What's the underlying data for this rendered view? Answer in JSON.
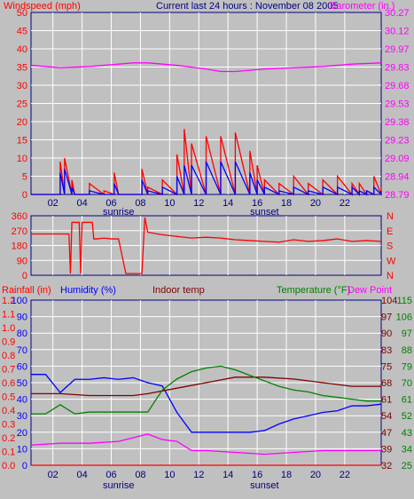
{
  "header": {
    "left_label": "Windspeed (mph)",
    "center_label": "Current last 24 hours : November 08 2005",
    "right_label": "Barometer (in.)"
  },
  "bottom_header": {
    "rainfall": "Rainfall (in)",
    "humidity": "Humidity (%)",
    "indoor": "Indoor temp",
    "temperature": "Temperature (°F)",
    "dewpoint": "Dew Point"
  },
  "sun": {
    "sunrise": "sunrise",
    "sunset": "sunset"
  },
  "colors": {
    "bg": "#c0c0c0",
    "frame": "#000080",
    "wind_gust": "#ff0000",
    "wind_avg": "#0000ff",
    "barometer": "#ff00ff",
    "direction": "#ff0000",
    "rain": "#ff0000",
    "humidity": "#0000ff",
    "indoor": "#800000",
    "temperature": "#008000",
    "dewpoint": "#ff00ff",
    "grid": "#ffffff",
    "rain_axis": "#ff0000",
    "humidity_axis": "#0000ff",
    "indoor_axis": "#800000",
    "temperature_axis": "#008000"
  },
  "chart_data": [
    {
      "type": "line",
      "name": "wind-barometer",
      "x_ticks": [
        "02",
        "04",
        "06",
        "08",
        "10",
        "12",
        "14",
        "16",
        "18",
        "20",
        "22"
      ],
      "x_range_hours": [
        0,
        24
      ],
      "left_axis": {
        "label": "Windspeed (mph)",
        "range": [
          0,
          50
        ],
        "ticks": [
          "0",
          "5",
          "10",
          "15",
          "20",
          "25",
          "30",
          "35",
          "40",
          "45",
          "50"
        ]
      },
      "right_axis": {
        "label": "Barometer (in.)",
        "range": [
          28.79,
          30.27
        ],
        "ticks": [
          "28.79",
          "28.94",
          "29.09",
          "29.23",
          "29.38",
          "29.53",
          "29.68",
          "29.83",
          "29.97",
          "30.12",
          "30.27"
        ]
      },
      "grid": true,
      "series": [
        {
          "hours": [
            0,
            1.5,
            2.0,
            2.3,
            2.8,
            3.0,
            4.0,
            5.0,
            5.7,
            6.0,
            7.0,
            7.6,
            8.0,
            9.0,
            10.0,
            10.5,
            11.0,
            12.0,
            13.0,
            14.0,
            15.0,
            15.5,
            16.0,
            17.0,
            18.0,
            19.0,
            20.0,
            21.0,
            22.0,
            22.5,
            23.0,
            23.5,
            24.0
          ],
          "values": [
            0,
            0,
            9,
            10,
            4,
            0,
            3,
            1,
            6,
            0,
            0,
            7,
            2,
            4,
            11,
            18,
            14,
            16,
            16,
            17,
            12,
            8,
            4,
            3,
            5,
            3,
            4,
            5,
            3,
            3,
            1,
            5,
            2
          ]
        },
        {
          "hours": [
            0,
            1.5,
            2.0,
            2.3,
            2.8,
            3.0,
            4.0,
            5.0,
            5.7,
            6.0,
            7.0,
            7.6,
            8.0,
            9.0,
            10.0,
            10.5,
            11.0,
            12.0,
            13.0,
            14.0,
            15.0,
            15.5,
            16.0,
            17.0,
            18.0,
            19.0,
            20.0,
            21.0,
            22.0,
            22.5,
            23.0,
            23.5,
            24.0
          ],
          "values": [
            0,
            0,
            6,
            7,
            2,
            0,
            1,
            0,
            3,
            0,
            0,
            4,
            1,
            2,
            5,
            8,
            8,
            9,
            9,
            9,
            6,
            4,
            2,
            1,
            2,
            1,
            2,
            2,
            2,
            1,
            1,
            2,
            1
          ]
        },
        {
          "hours": [
            0,
            2,
            4,
            6,
            7,
            8,
            10,
            12,
            13,
            14,
            15,
            16,
            18,
            20,
            22,
            24
          ],
          "values": [
            29.84,
            29.82,
            29.83,
            29.85,
            29.86,
            29.86,
            29.84,
            29.81,
            29.79,
            29.79,
            29.8,
            29.81,
            29.82,
            29.83,
            29.85,
            29.86
          ]
        }
      ]
    },
    {
      "type": "line",
      "name": "wind-direction",
      "left_axis": {
        "range": [
          0,
          360
        ],
        "ticks": [
          "0",
          "90",
          "180",
          "270",
          "360"
        ]
      },
      "right_axis": {
        "ticks": [
          "N",
          "W",
          "S",
          "E",
          "N"
        ]
      },
      "grid": true,
      "series": [
        {
          "hours": [
            0,
            2.6,
            2.7,
            2.8,
            3.3,
            3.4,
            3.5,
            4.2,
            4.3,
            4.5,
            5.0,
            5.5,
            6.0,
            6.5,
            7.0,
            7.6,
            7.8,
            8.0,
            9.0,
            10.0,
            11.0,
            12.0,
            13.0,
            14.0,
            15.0,
            16.0,
            17.0,
            18.0,
            19.0,
            20.0,
            21.0,
            22.0,
            23.0,
            24.0
          ],
          "values": [
            250,
            250,
            10,
            320,
            320,
            10,
            320,
            320,
            220,
            220,
            225,
            220,
            220,
            10,
            10,
            10,
            350,
            260,
            245,
            235,
            225,
            230,
            225,
            215,
            210,
            205,
            200,
            215,
            205,
            210,
            220,
            205,
            210,
            205
          ]
        }
      ]
    },
    {
      "type": "line",
      "name": "temperature-humidity",
      "left_axis_rain": {
        "label": "Rainfall (in)",
        "range": [
          0,
          1.2
        ],
        "ticks": [
          "0.0",
          "0.1",
          "0.2",
          "0.3",
          "0.4",
          "0.5",
          "0.6",
          "0.7",
          "0.8",
          "0.9",
          "1.0",
          "1.1",
          "1.2"
        ]
      },
      "left_axis_humidity": {
        "label": "Humidity (%)",
        "range": [
          0,
          100
        ],
        "ticks": [
          "0",
          "10",
          "20",
          "30",
          "40",
          "50",
          "60",
          "70",
          "80",
          "90",
          "100"
        ]
      },
      "right_axis_indoor": {
        "ticks": [
          "32",
          "39",
          "47",
          "54",
          "61",
          "68",
          "75",
          "83",
          "90",
          "97",
          "104"
        ]
      },
      "right_axis_temperature": {
        "label": "Temperature (°F)",
        "range": [
          25,
          115
        ],
        "ticks": [
          "25",
          "34",
          "43",
          "52",
          "61",
          "70",
          "79",
          "88",
          "97",
          "106",
          "115"
        ]
      },
      "grid": true,
      "series": [
        {
          "hours": [
            0,
            24
          ],
          "values": [
            0.0,
            0.0
          ]
        },
        {
          "hours": [
            0,
            1,
            2,
            3,
            4,
            5,
            6,
            7,
            8,
            9,
            10,
            11,
            12,
            13,
            14,
            15,
            16,
            17,
            18,
            19,
            20,
            21,
            22,
            23,
            24
          ],
          "values": [
            55,
            55,
            44,
            52,
            52,
            53,
            52,
            53,
            50,
            48,
            32,
            20,
            20,
            20,
            20,
            20,
            21,
            25,
            28,
            30,
            32,
            33,
            36,
            36,
            37
          ]
        },
        {
          "hours": [
            0,
            2,
            4,
            6,
            7,
            8,
            10,
            12,
            14,
            16,
            18,
            20,
            22,
            24
          ],
          "values": [
            64,
            64,
            63,
            63,
            63,
            64,
            67,
            70,
            73,
            73,
            72,
            70,
            68,
            68
          ]
        },
        {
          "hours": [
            0,
            1,
            2,
            3,
            4,
            5,
            6,
            7,
            8,
            9,
            10,
            11,
            12,
            13,
            14,
            15,
            16,
            17,
            18,
            19,
            20,
            21,
            22,
            23,
            24
          ],
          "values": [
            53,
            53,
            58,
            53,
            54,
            54,
            54,
            54,
            54,
            66,
            72,
            76,
            78,
            79,
            77,
            74,
            71,
            68,
            66,
            65,
            63,
            62,
            61,
            60,
            60
          ]
        },
        {
          "hours": [
            0,
            2,
            4,
            6,
            7,
            8,
            9,
            10,
            11,
            12,
            14,
            16,
            18,
            20,
            22,
            24
          ],
          "values": [
            36,
            37,
            37,
            38,
            40,
            42,
            39,
            38,
            33,
            33,
            32,
            31,
            32,
            33,
            33,
            33
          ]
        }
      ]
    }
  ]
}
